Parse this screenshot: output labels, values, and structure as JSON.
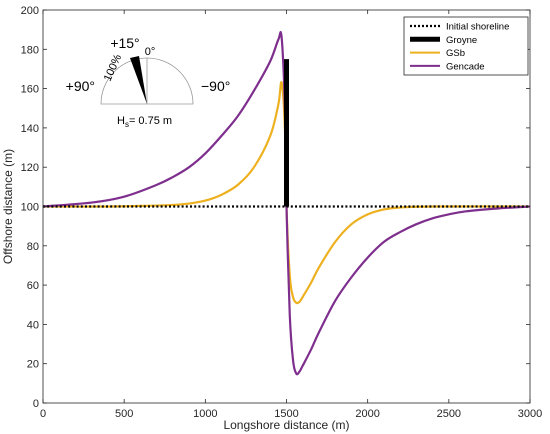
{
  "chart_data": {
    "type": "line",
    "xlabel": "Longshore distance (m)",
    "ylabel": "Offshore distance (m)",
    "xlim": [
      0,
      3000
    ],
    "ylim": [
      0,
      200
    ],
    "x_ticks": [
      0,
      500,
      1000,
      1500,
      2000,
      2500,
      3000
    ],
    "y_ticks": [
      0,
      20,
      40,
      60,
      80,
      100,
      120,
      140,
      160,
      180,
      200
    ],
    "x_tick_labels": [
      "0",
      "500",
      "1000",
      "1500",
      "2000",
      "2500",
      "3000"
    ],
    "y_tick_labels": [
      "0",
      "20",
      "40",
      "60",
      "80",
      "100",
      "120",
      "140",
      "160",
      "180",
      "200"
    ],
    "grid": false,
    "legend_position": "top-right",
    "series": [
      {
        "name": "Initial shoreline",
        "color": "#000000",
        "style": "dotted",
        "x": [
          0,
          3000
        ],
        "y": [
          100,
          100
        ]
      },
      {
        "name": "Groyne",
        "color": "#000000",
        "style": "bar",
        "x": [
          1500,
          1500
        ],
        "y": [
          100,
          175
        ]
      },
      {
        "name": "GSb",
        "color": "#EDB120",
        "style": "solid",
        "x": [
          0,
          400,
          600,
          800,
          900,
          1000,
          1100,
          1200,
          1300,
          1400,
          1450,
          1470,
          1490,
          1500,
          1520,
          1540,
          1560,
          1580,
          1600,
          1650,
          1700,
          1800,
          1900,
          2000,
          2100,
          2200,
          2400,
          3000
        ],
        "y": [
          100,
          100,
          100.3,
          100.8,
          101.5,
          103,
          106,
          111,
          120,
          136,
          152,
          163,
          140,
          100,
          65,
          54,
          51,
          51.5,
          54,
          61,
          69,
          82,
          91,
          96,
          98.5,
          99.5,
          100,
          100
        ]
      },
      {
        "name": "Gencade",
        "color": "#7E2F8E",
        "style": "solid",
        "x": [
          0,
          300,
          500,
          700,
          800,
          900,
          1000,
          1100,
          1200,
          1300,
          1400,
          1450,
          1470,
          1490,
          1500,
          1520,
          1540,
          1560,
          1580,
          1600,
          1650,
          1700,
          1800,
          1900,
          2000,
          2100,
          2200,
          2300,
          2400,
          2500,
          2600,
          2800,
          3000
        ],
        "y": [
          100,
          102,
          105,
          111,
          115,
          120,
          127,
          136,
          146,
          159,
          174,
          185,
          186,
          150,
          100,
          45,
          22,
          15,
          16,
          19,
          27,
          36,
          52,
          64,
          74,
          82,
          87,
          91,
          94,
          96,
          97.5,
          99,
          100
        ]
      }
    ]
  },
  "wave_rose": {
    "angle_left": "+90°",
    "angle_right": "−90°",
    "angle_top": "0°",
    "angle_wave": "+15°",
    "percent_label": "100%",
    "height_prefix": "H",
    "height_subscript": "s",
    "height_value": "= 0.75 m"
  }
}
